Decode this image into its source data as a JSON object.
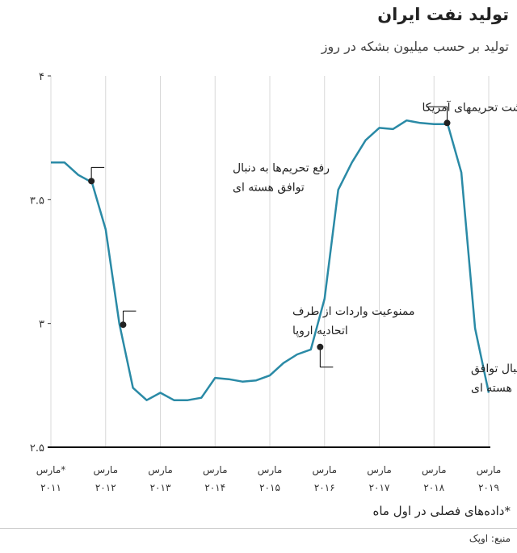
{
  "header": {
    "title": "تولید نفت ایران",
    "subtitle": "تولید بر حسب میلیون بشکه در روز"
  },
  "footer": {
    "note": "*داده‌های فصلی در اول ماه",
    "source": "منبع: اوپک"
  },
  "colors": {
    "line": "#2a8aa6",
    "grid": "#d8d8d8",
    "axis": "#000000",
    "annotation": "#000000"
  },
  "chart_data": {
    "type": "line",
    "title": "تولید نفت ایران",
    "subtitle": "تولید بر حسب میلیون بشکه در روز",
    "ylim": [
      2.5,
      4
    ],
    "yticks": [
      {
        "value": 4,
        "label": "۴"
      },
      {
        "value": 3.5,
        "label": "۳.۵"
      },
      {
        "value": 3,
        "label": "۳"
      },
      {
        "value": 2.5,
        "label": "۲.۵"
      }
    ],
    "xlim": [
      2011,
      2019
    ],
    "xticks": [
      {
        "value": 2011,
        "line1": "مارس*",
        "line2": "۲۰۱۱"
      },
      {
        "value": 2012,
        "line1": "مارس",
        "line2": "۲۰۱۲"
      },
      {
        "value": 2013,
        "line1": "مارس",
        "line2": "۲۰۱۳"
      },
      {
        "value": 2014,
        "line1": "مارس",
        "line2": "۲۰۱۴"
      },
      {
        "value": 2015,
        "line1": "مارس",
        "line2": "۲۰۱۵"
      },
      {
        "value": 2016,
        "line1": "مارس",
        "line2": "۲۰۱۶"
      },
      {
        "value": 2017,
        "line1": "مارس",
        "line2": "۲۰۱۷"
      },
      {
        "value": 2018,
        "line1": "مارس",
        "line2": "۲۰۱۸"
      },
      {
        "value": 2019,
        "line1": "مارس",
        "line2": "۲۰۱۹"
      }
    ],
    "grid": "vertical",
    "series": [
      {
        "x": [
          2011.0,
          2011.25,
          2011.5,
          2011.75,
          2012.0,
          2012.25,
          2012.5,
          2012.75,
          2013.0,
          2013.25,
          2013.5,
          2013.75,
          2014.0,
          2014.25,
          2014.5,
          2014.75,
          2015.0,
          2015.25,
          2015.5,
          2015.75,
          2016.0,
          2016.25,
          2016.5,
          2016.75,
          2017.0,
          2017.25,
          2017.5,
          2017.75,
          2018.0,
          2018.25,
          2018.5,
          2018.75,
          2019.0
        ],
        "y": [
          3.65,
          3.65,
          3.6,
          3.57,
          3.38,
          3.0,
          2.74,
          2.69,
          2.72,
          2.69,
          2.69,
          2.7,
          2.78,
          2.775,
          2.765,
          2.77,
          2.79,
          2.84,
          2.875,
          2.895,
          3.1,
          3.54,
          3.65,
          3.74,
          3.79,
          3.785,
          3.82,
          3.81,
          3.805,
          3.805,
          3.61,
          2.98,
          2.72
        ]
      }
    ],
    "annotations": [
      {
        "x": 2011.74,
        "y": 3.575,
        "line1": "رفع تحریم‌ها به دنبال",
        "line2": "توافق هسته ای",
        "side": "right"
      },
      {
        "x": 2012.32,
        "y": 2.995,
        "line1": "ممنوعیت واردات از طرف",
        "line2": "اتحادیه اروپا",
        "side": "right"
      },
      {
        "x": 2015.92,
        "y": 2.905,
        "line1": "رفع تحریم‌ها به دنبال توافق",
        "line2": "هسته ای",
        "side": "below-right"
      },
      {
        "x": 2018.24,
        "y": 3.81,
        "line1": "بازگشت تحریمهای آمریکا",
        "line2": "",
        "side": "left"
      }
    ]
  }
}
